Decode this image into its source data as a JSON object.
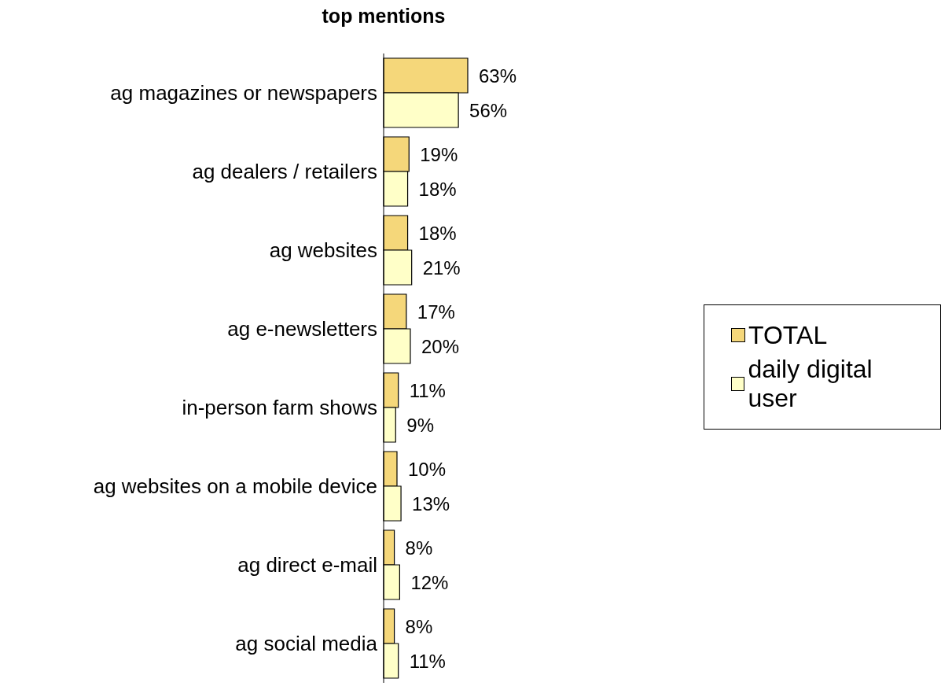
{
  "chart_data": {
    "type": "bar",
    "orientation": "horizontal",
    "title": "top mentions",
    "categories": [
      "ag magazines or newspapers",
      "ag dealers / retailers",
      "ag websites",
      "ag e-newsletters",
      "in-person farm shows",
      "ag websites on a mobile device",
      "ag direct e-mail",
      "ag social media"
    ],
    "series": [
      {
        "name": "TOTAL",
        "color": "#f5d77a",
        "values": [
          63,
          19,
          18,
          17,
          11,
          10,
          8,
          8
        ],
        "value_labels": [
          "63%",
          "19%",
          "18%",
          "17%",
          "11%",
          "10%",
          "8%",
          "8%"
        ]
      },
      {
        "name": "daily digital user",
        "color": "#ffffc8",
        "values": [
          56,
          18,
          21,
          20,
          9,
          13,
          12,
          11
        ],
        "value_labels": [
          "56%",
          "18%",
          "21%",
          "20%",
          "9%",
          "13%",
          "12%",
          "11%"
        ]
      }
    ],
    "legend": "right"
  }
}
